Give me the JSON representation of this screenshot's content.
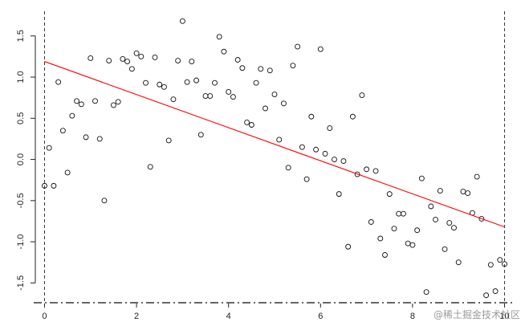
{
  "chart_data": {
    "type": "scatter",
    "title": "",
    "xlabel": "",
    "ylabel": "",
    "xlim": [
      -0.2,
      10.2
    ],
    "ylim": [
      -1.75,
      1.8
    ],
    "xticks": [
      0,
      2,
      4,
      6,
      8,
      10
    ],
    "yticks": [
      -1.5,
      -1.0,
      -0.5,
      0.0,
      0.5,
      1.0,
      1.5
    ],
    "xtick_labels": [
      "0",
      "2",
      "4",
      "6",
      "8",
      "10"
    ],
    "ytick_labels": [
      "-1.5",
      "-1.0",
      "-0.5",
      "0.0",
      "0.5",
      "1.0",
      "1.5"
    ],
    "vertical_reference_lines_x": [
      0,
      10
    ],
    "horizontal_reference_line_y": -1.75,
    "fit_line": {
      "color": "#ff0000",
      "x": [
        0,
        10
      ],
      "y": [
        1.19,
        -0.82
      ]
    },
    "points": [
      [
        0.0,
        -0.32
      ],
      [
        0.1,
        0.14
      ],
      [
        0.2,
        -0.32
      ],
      [
        0.3,
        0.94
      ],
      [
        0.4,
        0.35
      ],
      [
        0.5,
        -0.16
      ],
      [
        0.6,
        0.53
      ],
      [
        0.7,
        0.71
      ],
      [
        0.8,
        0.67
      ],
      [
        0.9,
        0.27
      ],
      [
        1.0,
        1.23
      ],
      [
        1.1,
        0.71
      ],
      [
        1.2,
        0.25
      ],
      [
        1.3,
        -0.5
      ],
      [
        1.4,
        1.2
      ],
      [
        1.5,
        0.66
      ],
      [
        1.6,
        0.7
      ],
      [
        1.7,
        1.22
      ],
      [
        1.8,
        1.19
      ],
      [
        1.9,
        1.1
      ],
      [
        2.0,
        1.29
      ],
      [
        2.1,
        1.25
      ],
      [
        2.2,
        0.93
      ],
      [
        2.3,
        -0.09
      ],
      [
        2.4,
        1.24
      ],
      [
        2.5,
        0.91
      ],
      [
        2.6,
        0.88
      ],
      [
        2.7,
        0.23
      ],
      [
        2.8,
        0.73
      ],
      [
        2.9,
        1.2
      ],
      [
        3.0,
        1.68
      ],
      [
        3.1,
        0.94
      ],
      [
        3.2,
        1.19
      ],
      [
        3.3,
        0.96
      ],
      [
        3.4,
        0.3
      ],
      [
        3.5,
        0.77
      ],
      [
        3.6,
        0.77
      ],
      [
        3.7,
        0.93
      ],
      [
        3.8,
        1.49
      ],
      [
        3.9,
        1.31
      ],
      [
        4.0,
        0.82
      ],
      [
        4.1,
        0.76
      ],
      [
        4.2,
        1.21
      ],
      [
        4.3,
        1.11
      ],
      [
        4.4,
        0.45
      ],
      [
        4.5,
        0.42
      ],
      [
        4.6,
        0.93
      ],
      [
        4.7,
        1.1
      ],
      [
        4.8,
        0.62
      ],
      [
        4.9,
        1.08
      ],
      [
        5.0,
        0.79
      ],
      [
        5.1,
        0.24
      ],
      [
        5.2,
        0.68
      ],
      [
        5.3,
        -0.1
      ],
      [
        5.4,
        1.14
      ],
      [
        5.5,
        1.37
      ],
      [
        5.6,
        0.15
      ],
      [
        5.7,
        -0.24
      ],
      [
        5.8,
        0.52
      ],
      [
        5.9,
        0.12
      ],
      [
        6.0,
        1.34
      ],
      [
        6.1,
        0.07
      ],
      [
        6.2,
        0.38
      ],
      [
        6.3,
        0.0
      ],
      [
        6.4,
        -0.42
      ],
      [
        6.5,
        -0.02
      ],
      [
        6.6,
        -1.06
      ],
      [
        6.7,
        0.52
      ],
      [
        6.8,
        -0.18
      ],
      [
        6.9,
        0.78
      ],
      [
        7.0,
        -0.12
      ],
      [
        7.1,
        -0.76
      ],
      [
        7.2,
        -0.14
      ],
      [
        7.3,
        -0.96
      ],
      [
        7.4,
        -1.16
      ],
      [
        7.5,
        -0.42
      ],
      [
        7.6,
        -0.84
      ],
      [
        7.7,
        -0.66
      ],
      [
        7.8,
        -0.66
      ],
      [
        7.9,
        -1.02
      ],
      [
        8.0,
        -1.04
      ],
      [
        8.1,
        -0.86
      ],
      [
        8.2,
        -0.23
      ],
      [
        8.3,
        -1.61
      ],
      [
        8.4,
        -0.57
      ],
      [
        8.5,
        -0.73
      ],
      [
        8.6,
        -0.38
      ],
      [
        8.7,
        -1.09
      ],
      [
        8.8,
        -0.77
      ],
      [
        8.9,
        -0.83
      ],
      [
        9.0,
        -1.25
      ],
      [
        9.1,
        -0.39
      ],
      [
        9.2,
        -0.41
      ],
      [
        9.3,
        -0.65
      ],
      [
        9.4,
        -0.21
      ],
      [
        9.5,
        -0.72
      ],
      [
        9.6,
        -1.65
      ],
      [
        9.7,
        -1.28
      ],
      [
        9.8,
        -1.6
      ],
      [
        9.9,
        -1.22
      ],
      [
        10.0,
        -1.27
      ]
    ]
  },
  "watermark": "@稀土掘金技术社区"
}
